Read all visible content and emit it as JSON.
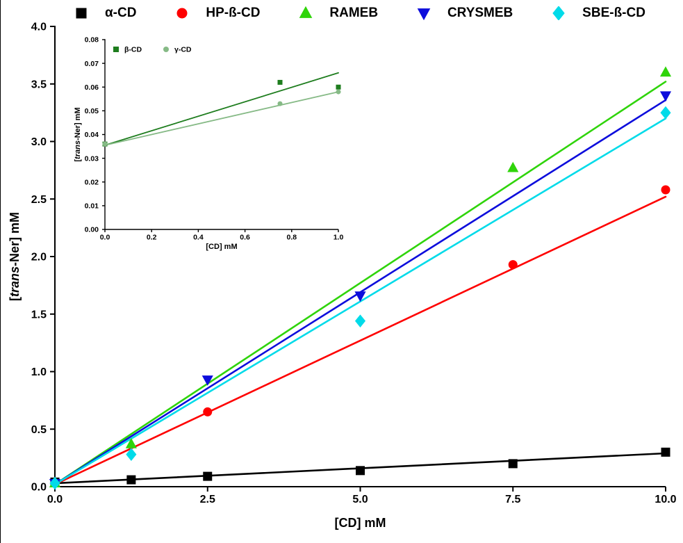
{
  "figure": {
    "background": "#ffffff",
    "axis_color": "#000000"
  },
  "chart_data": [
    {
      "id": "main",
      "type": "scatter",
      "title": "",
      "xlabel": "[CD] mM",
      "ylabel": "[trans-Ner] mM",
      "xlim": [
        0,
        10
      ],
      "ylim": [
        0,
        4.0
      ],
      "grid": false,
      "legend_position": "top-outside",
      "xticks": {
        "values": [
          0,
          2.5,
          5,
          7.5,
          10
        ],
        "labels": [
          "0.0",
          "2.5",
          "5.0",
          "7.5",
          "10.0"
        ]
      },
      "yticks": {
        "values": [
          0,
          0.5,
          1.0,
          1.5,
          2.0,
          2.5,
          3.0,
          3.5,
          4.0
        ],
        "labels": [
          "0.0",
          "0.5",
          "1.0",
          "1.5",
          "2.0",
          "2.5",
          "3.0",
          "3.5",
          "4.0"
        ]
      },
      "series": [
        {
          "name": "α-CD",
          "marker": "square",
          "color": "#000000",
          "points": [
            [
              0,
              0.04
            ],
            [
              1.25,
              0.06
            ],
            [
              2.5,
              0.09
            ],
            [
              5.0,
              0.14
            ],
            [
              7.5,
              0.2
            ],
            [
              10.0,
              0.3
            ]
          ],
          "fit_line": [
            [
              0,
              0.03
            ],
            [
              10,
              0.29
            ]
          ]
        },
        {
          "name": "HP-ß-CD",
          "marker": "circle",
          "color": "#fe0000",
          "points": [
            [
              0,
              0.03
            ],
            [
              2.5,
              0.65
            ],
            [
              7.5,
              1.93
            ],
            [
              10.0,
              2.58
            ]
          ],
          "fit_line": [
            [
              0,
              0.02
            ],
            [
              10,
              2.52
            ]
          ]
        },
        {
          "name": "RAMEB",
          "marker": "triangle-up",
          "color": "#2fd40a",
          "points": [
            [
              0,
              0.03
            ],
            [
              1.25,
              0.37
            ],
            [
              7.5,
              2.77
            ],
            [
              10.0,
              3.6
            ]
          ],
          "fit_line": [
            [
              0,
              0.02
            ],
            [
              10,
              3.52
            ]
          ]
        },
        {
          "name": "CRYSMEB",
          "marker": "triangle-down",
          "color": "#0d0ddc",
          "points": [
            [
              0,
              0.03
            ],
            [
              2.5,
              0.93
            ],
            [
              5.0,
              1.66
            ],
            [
              10.0,
              3.4
            ]
          ],
          "fit_line": [
            [
              0,
              0.02
            ],
            [
              10,
              3.36
            ]
          ]
        },
        {
          "name": "SBE-ß-CD",
          "marker": "diamond",
          "color": "#00dbe9",
          "points": [
            [
              0,
              0.03
            ],
            [
              1.25,
              0.28
            ],
            [
              5.0,
              1.44
            ],
            [
              10.0,
              3.25
            ]
          ],
          "fit_line": [
            [
              0,
              0.02
            ],
            [
              10,
              3.2
            ]
          ]
        }
      ]
    },
    {
      "id": "inset",
      "type": "scatter",
      "title": "",
      "xlabel": "[CD] mM",
      "ylabel": "[trans-Ner] mM",
      "xlim": [
        0,
        1.0
      ],
      "ylim": [
        0,
        0.08
      ],
      "grid": false,
      "legend_position": "top-left-inside",
      "xticks": {
        "values": [
          0,
          0.2,
          0.4,
          0.6,
          0.8,
          1.0
        ],
        "labels": [
          "0.0",
          "0.2",
          "0.4",
          "0.6",
          "0.8",
          "1.0"
        ]
      },
      "yticks": {
        "values": [
          0,
          0.01,
          0.02,
          0.03,
          0.04,
          0.05,
          0.06,
          0.07,
          0.08
        ],
        "labels": [
          "0.00",
          "0.01",
          "0.02",
          "0.03",
          "0.04",
          "0.05",
          "0.06",
          "0.07",
          "0.08"
        ]
      },
      "series": [
        {
          "name": "β-CD",
          "marker": "square",
          "color": "#1e7d1e",
          "points": [
            [
              0,
              0.036
            ],
            [
              0.75,
              0.062
            ],
            [
              1.0,
              0.06
            ]
          ],
          "fit_line": [
            [
              0,
              0.0355
            ],
            [
              1.0,
              0.066
            ]
          ]
        },
        {
          "name": "γ-CD",
          "marker": "circle",
          "color": "#86ba86",
          "points": [
            [
              0,
              0.036
            ],
            [
              0.75,
              0.053
            ],
            [
              1.0,
              0.058
            ]
          ],
          "fit_line": [
            [
              0,
              0.0355
            ],
            [
              1.0,
              0.058
            ]
          ]
        }
      ]
    }
  ]
}
